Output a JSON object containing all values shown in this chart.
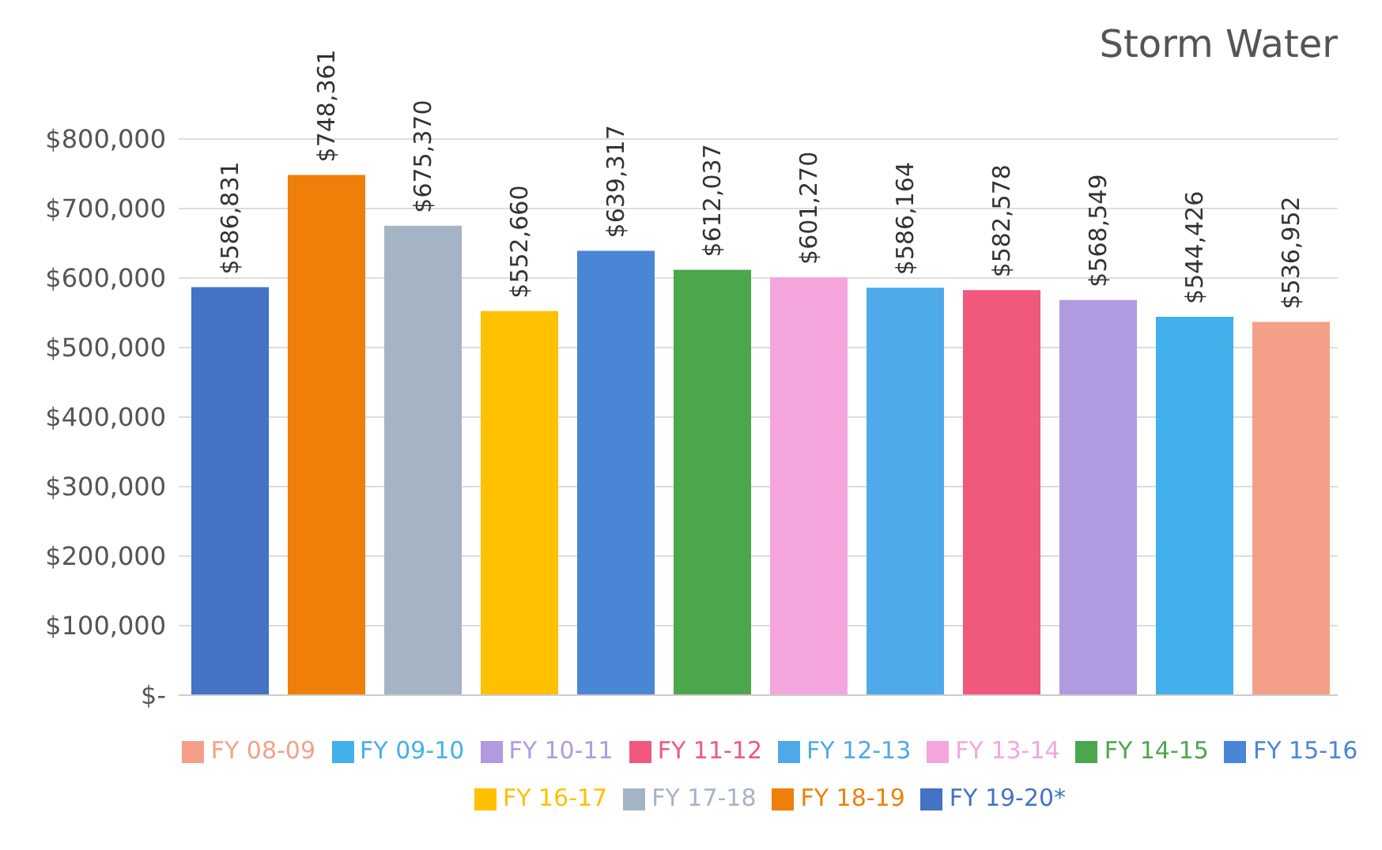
{
  "chart_data": {
    "type": "bar",
    "title": "Storm Water",
    "categories": [
      null
    ],
    "series": [
      {
        "name": "FY 19-20*",
        "color": "#4472c4",
        "values": [
          586831
        ],
        "value_labels": [
          "$586,831"
        ]
      },
      {
        "name": "FY 18-19",
        "color": "#f07f09",
        "values": [
          748361
        ],
        "value_labels": [
          "$748,361"
        ]
      },
      {
        "name": "FY 17-18",
        "color": "#a5b4c4",
        "values": [
          675370
        ],
        "value_labels": [
          "$675,370"
        ]
      },
      {
        "name": "FY 16-17",
        "color": "#ffc000",
        "values": [
          552660
        ],
        "value_labels": [
          "$552,660"
        ]
      },
      {
        "name": "FY 15-16",
        "color": "#4a86d6",
        "values": [
          639317
        ],
        "value_labels": [
          "$639,317"
        ]
      },
      {
        "name": "FY 14-15",
        "color": "#4ca64c",
        "values": [
          612037
        ],
        "value_labels": [
          "$612,037"
        ]
      },
      {
        "name": "FY 13-14",
        "color": "#f4a6dc",
        "values": [
          601270
        ],
        "value_labels": [
          "$601,270"
        ]
      },
      {
        "name": "FY 12-13",
        "color": "#4ea9e8",
        "values": [
          586164
        ],
        "value_labels": [
          "$586,164"
        ]
      },
      {
        "name": "FY 11-12",
        "color": "#f0587c",
        "values": [
          582578
        ],
        "value_labels": [
          "$582,578"
        ]
      },
      {
        "name": "FY 10-11",
        "color": "#b09ae0",
        "values": [
          568549
        ],
        "value_labels": [
          "$568,549"
        ]
      },
      {
        "name": "FY 09-10",
        "color": "#42b0ea",
        "values": [
          544426
        ],
        "value_labels": [
          "$544,426"
        ]
      },
      {
        "name": "FY 08-09",
        "color": "#f4a088",
        "values": [
          536952
        ],
        "value_labels": [
          "$536,952"
        ]
      }
    ],
    "ylim": [
      0,
      800000
    ],
    "yticks": [
      {
        "value": 0,
        "label": "$-"
      },
      {
        "value": 100000,
        "label": "$100,000"
      },
      {
        "value": 200000,
        "label": "$200,000"
      },
      {
        "value": 300000,
        "label": "$300,000"
      },
      {
        "value": 400000,
        "label": "$400,000"
      },
      {
        "value": 500000,
        "label": "$500,000"
      },
      {
        "value": 600000,
        "label": "$600,000"
      },
      {
        "value": 700000,
        "label": "$700,000"
      },
      {
        "value": 800000,
        "label": "$800,000"
      }
    ],
    "grid": "y",
    "legend": "bottom"
  }
}
